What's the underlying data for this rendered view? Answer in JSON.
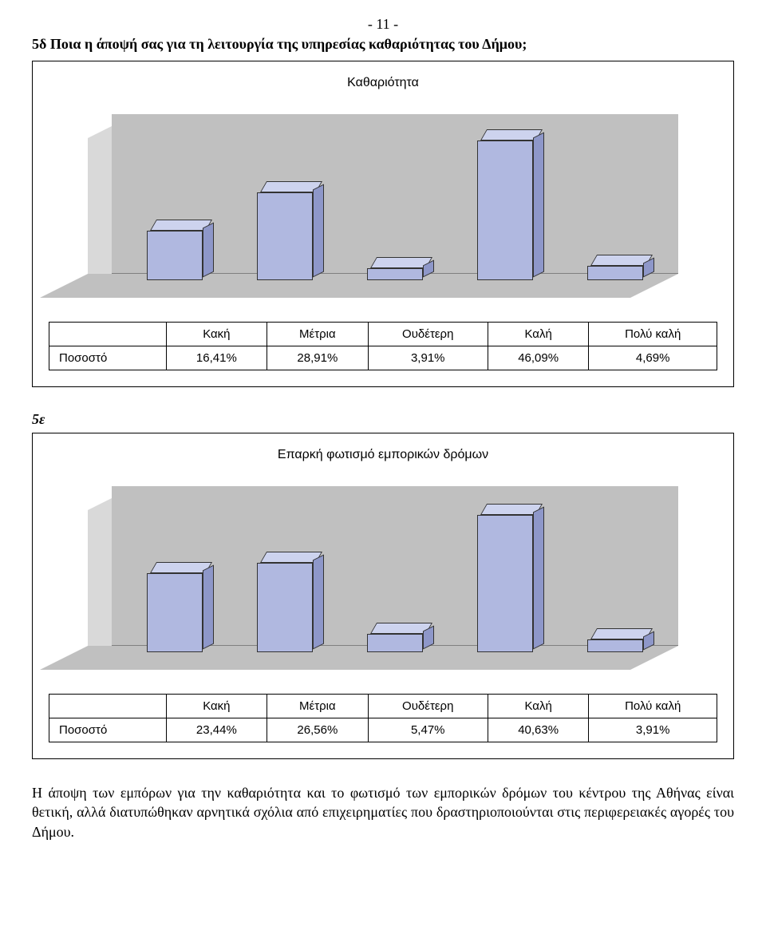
{
  "page_number": "- 11 -",
  "question_5d": "5δ Ποια η άποψή σας για τη λειτουργία της υπηρεσίας καθαριότητας του Δήμου;",
  "chart1": {
    "type": "bar",
    "title": "Καθαριότητα",
    "row_label": "Ποσοστό",
    "categories": [
      "Κακή",
      "Μέτρια",
      "Ουδέτερη",
      "Καλή",
      "Πολύ καλή"
    ],
    "display_values": [
      "16,41%",
      "28,91%",
      "3,91%",
      "46,09%",
      "4,69%"
    ],
    "values": [
      16.41,
      28.91,
      3.91,
      46.09,
      4.69
    ],
    "ylim": [
      0,
      50
    ],
    "bar_front_color": "#b0b8e0",
    "bar_top_color": "#cdd3ee",
    "bar_side_color": "#8e97c9",
    "wall_color": "#c0c0c0",
    "side_wall_color": "#d9d9d9",
    "border_color": "#000000",
    "title_fontsize": 16,
    "label_fontsize": 15
  },
  "section_5e_label": "5ε",
  "chart2": {
    "type": "bar",
    "title": "Επαρκή φωτισμό εμπορικών δρόμων",
    "row_label": "Ποσοστό",
    "categories": [
      "Κακή",
      "Μέτρια",
      "Ουδέτερη",
      "Καλή",
      "Πολύ καλή"
    ],
    "display_values": [
      "23,44%",
      "26,56%",
      "5,47%",
      "40,63%",
      "3,91%"
    ],
    "values": [
      23.44,
      26.56,
      5.47,
      40.63,
      3.91
    ],
    "ylim": [
      0,
      45
    ],
    "bar_front_color": "#b0b8e0",
    "bar_top_color": "#cdd3ee",
    "bar_side_color": "#8e97c9",
    "wall_color": "#c0c0c0",
    "side_wall_color": "#d9d9d9",
    "border_color": "#000000",
    "title_fontsize": 16,
    "label_fontsize": 15
  },
  "body_text": "Η άποψη των εμπόρων για την καθαριότητα και το φωτισμό των εμπορικών δρόμων του κέντρου της Αθήνας είναι θετική, αλλά διατυπώθηκαν αρνητικά σχόλια από επιχειρηματίες που δραστηριοποιούνται στις περιφερειακές αγορές του Δήμου."
}
